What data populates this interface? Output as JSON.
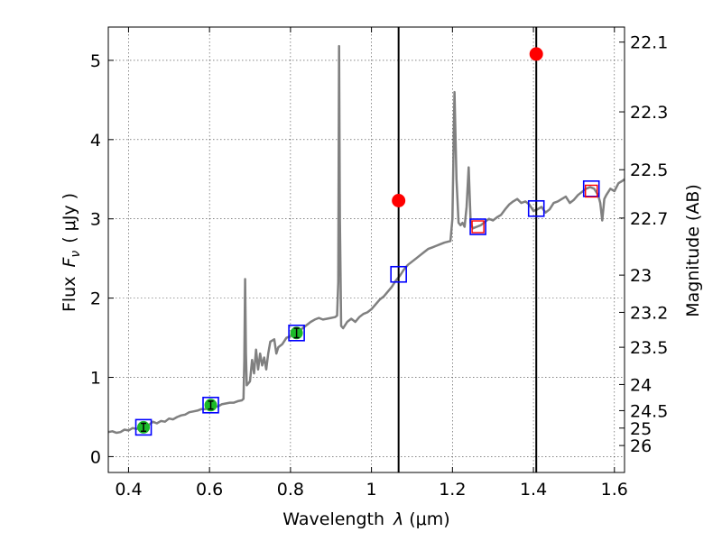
{
  "chart_data": {
    "type": "line",
    "xlabel_main": "Wavelength",
    "xlabel_math": "λ",
    "xlabel_unit": "(μm)",
    "ylabel_main": "Flux",
    "ylabel_math_main": "F",
    "ylabel_math_sub": "ν",
    "ylabel_unit": "( μJy )",
    "y2label": "Magnitude (AB)",
    "xlim": [
      0.35,
      1.625
    ],
    "ylim": [
      -0.2,
      5.42
    ],
    "grid": true,
    "x_ticks": [
      0.4,
      0.6,
      0.8,
      1.0,
      1.2,
      1.4,
      1.6
    ],
    "x_tick_labels": [
      "0.4",
      "0.6",
      "0.8",
      "1",
      "1.2",
      "1.4",
      "1.6"
    ],
    "y_ticks": [
      0,
      1,
      2,
      3,
      4,
      5
    ],
    "y_tick_labels": [
      "0",
      "1",
      "2",
      "3",
      "4",
      "5"
    ],
    "y2_ticks": [
      {
        "flux": 5.23,
        "label": "22.1"
      },
      {
        "flux": 4.35,
        "label": "22.3"
      },
      {
        "flux": 3.62,
        "label": "22.5"
      },
      {
        "flux": 3.01,
        "label": "22.7"
      },
      {
        "flux": 2.29,
        "label": "23"
      },
      {
        "flux": 1.82,
        "label": "23.2"
      },
      {
        "flux": 1.38,
        "label": "23.5"
      },
      {
        "flux": 0.91,
        "label": "24"
      },
      {
        "flux": 0.58,
        "label": "24.5"
      },
      {
        "flux": 0.36,
        "label": "25"
      },
      {
        "flux": 0.14,
        "label": "26"
      }
    ],
    "vlines": [
      1.067,
      1.407
    ],
    "series": [
      {
        "kind": "sed_model",
        "color": "#808080",
        "points": [
          [
            0.35,
            0.31
          ],
          [
            0.36,
            0.32
          ],
          [
            0.37,
            0.3
          ],
          [
            0.38,
            0.31
          ],
          [
            0.39,
            0.34
          ],
          [
            0.4,
            0.33
          ],
          [
            0.41,
            0.36
          ],
          [
            0.42,
            0.35
          ],
          [
            0.43,
            0.37
          ],
          [
            0.44,
            0.38
          ],
          [
            0.45,
            0.4
          ],
          [
            0.46,
            0.44
          ],
          [
            0.47,
            0.42
          ],
          [
            0.48,
            0.45
          ],
          [
            0.49,
            0.44
          ],
          [
            0.5,
            0.48
          ],
          [
            0.51,
            0.47
          ],
          [
            0.52,
            0.5
          ],
          [
            0.53,
            0.52
          ],
          [
            0.54,
            0.53
          ],
          [
            0.55,
            0.56
          ],
          [
            0.56,
            0.57
          ],
          [
            0.57,
            0.58
          ],
          [
            0.58,
            0.6
          ],
          [
            0.59,
            0.6
          ],
          [
            0.6,
            0.62
          ],
          [
            0.61,
            0.64
          ],
          [
            0.62,
            0.63
          ],
          [
            0.63,
            0.66
          ],
          [
            0.64,
            0.67
          ],
          [
            0.65,
            0.68
          ],
          [
            0.66,
            0.68
          ],
          [
            0.67,
            0.7
          ],
          [
            0.68,
            0.71
          ],
          [
            0.684,
            0.73
          ],
          [
            0.686,
            1.2
          ],
          [
            0.688,
            2.24
          ],
          [
            0.69,
            1.3
          ],
          [
            0.692,
            0.9
          ],
          [
            0.7,
            0.95
          ],
          [
            0.705,
            1.22
          ],
          [
            0.71,
            1.05
          ],
          [
            0.715,
            1.35
          ],
          [
            0.72,
            1.1
          ],
          [
            0.725,
            1.3
          ],
          [
            0.73,
            1.15
          ],
          [
            0.735,
            1.25
          ],
          [
            0.74,
            1.1
          ],
          [
            0.745,
            1.3
          ],
          [
            0.75,
            1.45
          ],
          [
            0.76,
            1.48
          ],
          [
            0.765,
            1.3
          ],
          [
            0.77,
            1.38
          ],
          [
            0.78,
            1.42
          ],
          [
            0.79,
            1.5
          ],
          [
            0.8,
            1.52
          ],
          [
            0.81,
            1.55
          ],
          [
            0.82,
            1.58
          ],
          [
            0.83,
            1.62
          ],
          [
            0.84,
            1.66
          ],
          [
            0.85,
            1.7
          ],
          [
            0.86,
            1.73
          ],
          [
            0.87,
            1.75
          ],
          [
            0.88,
            1.73
          ],
          [
            0.89,
            1.74
          ],
          [
            0.9,
            1.75
          ],
          [
            0.91,
            1.76
          ],
          [
            0.915,
            1.78
          ],
          [
            0.918,
            2.2
          ],
          [
            0.92,
            5.18
          ],
          [
            0.922,
            3.0
          ],
          [
            0.925,
            1.65
          ],
          [
            0.93,
            1.62
          ],
          [
            0.94,
            1.7
          ],
          [
            0.95,
            1.74
          ],
          [
            0.96,
            1.7
          ],
          [
            0.97,
            1.76
          ],
          [
            0.98,
            1.8
          ],
          [
            0.99,
            1.82
          ],
          [
            1.0,
            1.86
          ],
          [
            1.01,
            1.92
          ],
          [
            1.02,
            1.98
          ],
          [
            1.03,
            2.02
          ],
          [
            1.04,
            2.08
          ],
          [
            1.05,
            2.14
          ],
          [
            1.06,
            2.22
          ],
          [
            1.07,
            2.28
          ],
          [
            1.08,
            2.36
          ],
          [
            1.09,
            2.42
          ],
          [
            1.1,
            2.46
          ],
          [
            1.11,
            2.5
          ],
          [
            1.12,
            2.54
          ],
          [
            1.13,
            2.58
          ],
          [
            1.14,
            2.62
          ],
          [
            1.15,
            2.64
          ],
          [
            1.16,
            2.66
          ],
          [
            1.17,
            2.68
          ],
          [
            1.18,
            2.7
          ],
          [
            1.195,
            2.72
          ],
          [
            1.2,
            3.0
          ],
          [
            1.205,
            4.6
          ],
          [
            1.21,
            3.5
          ],
          [
            1.215,
            2.95
          ],
          [
            1.22,
            2.92
          ],
          [
            1.225,
            2.95
          ],
          [
            1.23,
            2.9
          ],
          [
            1.235,
            3.15
          ],
          [
            1.24,
            3.65
          ],
          [
            1.245,
            2.95
          ],
          [
            1.25,
            2.88
          ],
          [
            1.26,
            2.9
          ],
          [
            1.27,
            2.92
          ],
          [
            1.28,
            2.96
          ],
          [
            1.29,
            3.0
          ],
          [
            1.3,
            2.98
          ],
          [
            1.31,
            3.02
          ],
          [
            1.32,
            3.05
          ],
          [
            1.33,
            3.12
          ],
          [
            1.34,
            3.18
          ],
          [
            1.35,
            3.22
          ],
          [
            1.36,
            3.25
          ],
          [
            1.37,
            3.2
          ],
          [
            1.38,
            3.22
          ],
          [
            1.39,
            3.18
          ],
          [
            1.4,
            3.1
          ],
          [
            1.41,
            3.12
          ],
          [
            1.42,
            3.15
          ],
          [
            1.43,
            3.08
          ],
          [
            1.44,
            3.12
          ],
          [
            1.45,
            3.2
          ],
          [
            1.46,
            3.22
          ],
          [
            1.47,
            3.25
          ],
          [
            1.48,
            3.28
          ],
          [
            1.49,
            3.2
          ],
          [
            1.5,
            3.24
          ],
          [
            1.51,
            3.3
          ],
          [
            1.52,
            3.34
          ],
          [
            1.53,
            3.38
          ],
          [
            1.54,
            3.4
          ],
          [
            1.55,
            3.38
          ],
          [
            1.56,
            3.3
          ],
          [
            1.565,
            3.2
          ],
          [
            1.57,
            2.98
          ],
          [
            1.575,
            3.25
          ],
          [
            1.58,
            3.3
          ],
          [
            1.59,
            3.38
          ],
          [
            1.6,
            3.35
          ],
          [
            1.61,
            3.45
          ],
          [
            1.62,
            3.48
          ],
          [
            1.625,
            3.5
          ]
        ]
      },
      {
        "kind": "model_photometry",
        "marker": "open-square",
        "color": "#0000ff",
        "points": [
          [
            0.437,
            0.37
          ],
          [
            0.603,
            0.65
          ],
          [
            0.815,
            1.56
          ],
          [
            1.067,
            2.3
          ],
          [
            1.263,
            2.9
          ],
          [
            1.407,
            3.13
          ],
          [
            1.543,
            3.38
          ]
        ]
      },
      {
        "kind": "observed_detections",
        "marker": "filled-circle",
        "color": "#1cba28",
        "points": [
          {
            "x": 0.437,
            "y": 0.37,
            "yerr": 0.05
          },
          {
            "x": 0.603,
            "y": 0.65,
            "yerr": 0.05
          },
          {
            "x": 0.815,
            "y": 1.56,
            "yerr": 0.06
          }
        ]
      },
      {
        "kind": "observed_limits",
        "marker": "filled-circle",
        "color": "#ff0000",
        "points": [
          [
            1.067,
            3.23
          ],
          [
            1.407,
            5.08
          ]
        ]
      },
      {
        "kind": "open_red_squares",
        "marker": "open-square",
        "color": "#ff0000",
        "points": [
          [
            1.263,
            2.9
          ],
          [
            1.543,
            3.35
          ]
        ]
      }
    ]
  }
}
